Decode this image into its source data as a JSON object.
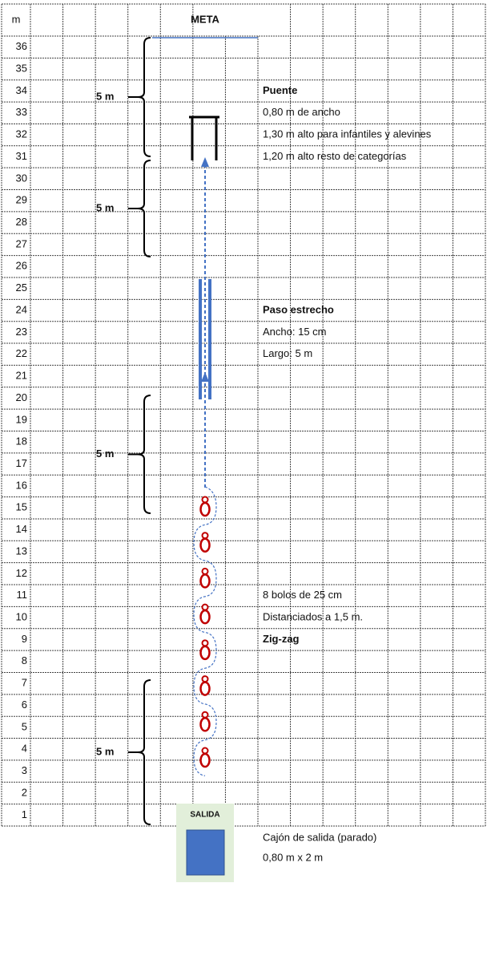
{
  "header": {
    "unit": "m",
    "goal": "META"
  },
  "rows": [
    36,
    35,
    34,
    33,
    32,
    31,
    30,
    29,
    28,
    27,
    26,
    25,
    24,
    23,
    22,
    21,
    20,
    19,
    18,
    17,
    16,
    15,
    14,
    13,
    12,
    11,
    10,
    9,
    8,
    7,
    6,
    5,
    4,
    3,
    2,
    1
  ],
  "braces": [
    "5 m",
    "5 m",
    "5 m",
    "5 m"
  ],
  "bridge": {
    "title": "Puente",
    "notes": [
      "0,80 m de ancho",
      "1,30 m alto para infantiles y alevines",
      "1,20 m alto resto de categorías"
    ]
  },
  "narrow_path": {
    "title": "Paso estrecho",
    "notes": [
      "Ancho: 15 cm",
      "Largo: 5 m"
    ]
  },
  "zigzag": {
    "notes": [
      "8 bolos de 25 cm",
      "Distanciados a 1,5 m."
    ],
    "title": "Zig-zag"
  },
  "start": {
    "label": "SALIDA",
    "notes": [
      "Cajón de salida (parado)",
      "0,80 m x 2 m"
    ]
  }
}
